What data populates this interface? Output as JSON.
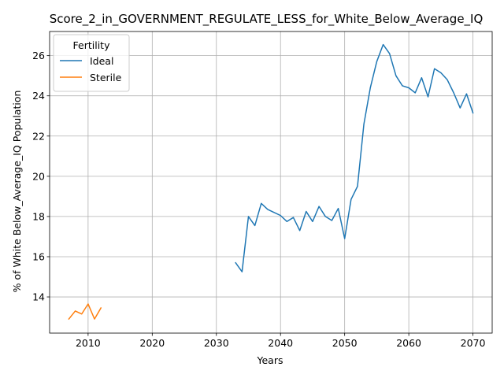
{
  "chart_data": {
    "type": "line",
    "title": "Score_2_in_GOVERNMENT_REGULATE_LESS_for_White_Below_Average_IQ",
    "xlabel": "Years",
    "ylabel": "% of White Below_Average_IQ Population",
    "xlim": [
      2004,
      2073
    ],
    "ylim": [
      12.2,
      27.2
    ],
    "xticks": [
      2010,
      2020,
      2030,
      2040,
      2050,
      2060,
      2070
    ],
    "yticks": [
      14,
      16,
      18,
      20,
      22,
      24,
      26
    ],
    "grid": true,
    "legend": {
      "title": "Fertility",
      "placement": "top-left",
      "entries": [
        "Ideal",
        "Sterile"
      ]
    },
    "series": [
      {
        "name": "Ideal",
        "color": "#1f77b4",
        "x": [
          2033,
          2034,
          2035,
          2036,
          2037,
          2038,
          2039,
          2040,
          2041,
          2042,
          2043,
          2044,
          2045,
          2046,
          2047,
          2048,
          2049,
          2050,
          2051,
          2052,
          2053,
          2054,
          2055,
          2056,
          2057,
          2058,
          2059,
          2060,
          2061,
          2062,
          2063,
          2064,
          2065,
          2066,
          2067,
          2068,
          2069,
          2070
        ],
        "values": [
          15.7,
          15.25,
          18.0,
          17.55,
          18.65,
          18.35,
          18.2,
          18.05,
          17.75,
          17.95,
          17.3,
          18.25,
          17.75,
          18.5,
          18.0,
          17.8,
          18.4,
          16.9,
          18.85,
          19.5,
          22.6,
          24.4,
          25.7,
          26.55,
          26.1,
          25.0,
          24.5,
          24.4,
          24.15,
          24.9,
          23.95,
          25.35,
          25.15,
          24.8,
          24.15,
          23.4,
          24.1,
          23.15
        ]
      },
      {
        "name": "Sterile",
        "color": "#ff7f0e",
        "x": [
          2007,
          2008,
          2009,
          2010,
          2011,
          2012
        ],
        "values": [
          12.9,
          13.3,
          13.15,
          13.65,
          12.9,
          13.45
        ]
      }
    ]
  }
}
